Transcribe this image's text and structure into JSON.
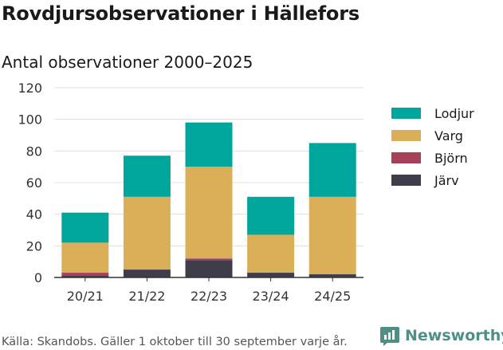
{
  "header": {
    "title": "Rovdjursobservationer i Hällefors",
    "subtitle": "Antal observationer 2000–2025"
  },
  "chart_data": {
    "type": "bar",
    "stacked": true,
    "title": "Rovdjursobservationer i Hällefors",
    "subtitle": "Antal observationer 2000–2025",
    "categories": [
      "20/21",
      "21/22",
      "22/23",
      "23/24",
      "24/25"
    ],
    "series": [
      {
        "name": "Järv",
        "color": "#3f3d4a",
        "values": [
          1,
          5,
          11,
          3,
          2
        ]
      },
      {
        "name": "Björn",
        "color": "#a8405a",
        "values": [
          2,
          0,
          1,
          0,
          0
        ]
      },
      {
        "name": "Varg",
        "color": "#dbaf57",
        "values": [
          19,
          46,
          58,
          24,
          49
        ]
      },
      {
        "name": "Lodjur",
        "color": "#00a59b",
        "values": [
          19,
          26,
          28,
          24,
          34
        ]
      }
    ],
    "ylim": [
      0,
      120
    ],
    "yticks": [
      0,
      20,
      40,
      60,
      80,
      100,
      120
    ],
    "xlabel": "",
    "ylabel": "",
    "grid": true,
    "legend_position": "right"
  },
  "legend": {
    "items": [
      {
        "label": "Lodjur",
        "color": "#00a59b"
      },
      {
        "label": "Varg",
        "color": "#dbaf57"
      },
      {
        "label": "Björn",
        "color": "#a8405a"
      },
      {
        "label": "Järv",
        "color": "#3f3d4a"
      }
    ]
  },
  "footer": {
    "source": "Källa: Skandobs. Gäller 1 oktober till 30 september varje år.",
    "brand": "Newsworthy"
  },
  "colors": {
    "brand": "#4e8f86",
    "grid": "#e0e0e0",
    "axis": "#333333"
  }
}
